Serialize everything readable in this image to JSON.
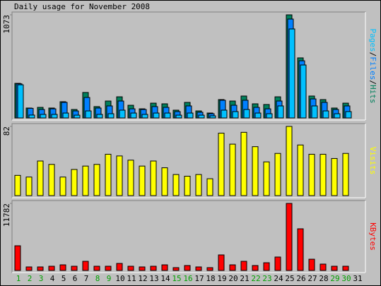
{
  "chart_data": [
    {
      "type": "bar",
      "title": "Daily usage for November 2008",
      "series": [
        {
          "name": "Pages",
          "color": "#00c0ff",
          "values": [
            345,
            30,
            37,
            37,
            51,
            29,
            73,
            37,
            44,
            81,
            51,
            37,
            51,
            51,
            29,
            51,
            29,
            22,
            81,
            66,
            88,
            51,
            44,
            125,
            926,
            551,
            125,
            73,
            44,
            66,
            0
          ]
        },
        {
          "name": "Files",
          "color": "#0080ff",
          "values": [
            355,
            100,
            88,
            95,
            162,
            73,
            213,
            103,
            125,
            176,
            95,
            88,
            118,
            110,
            66,
            125,
            59,
            44,
            184,
            132,
            184,
            110,
            95,
            176,
            1029,
            595,
            198,
            162,
            88,
            125,
            0
          ]
        },
        {
          "name": "Hits",
          "color": "#00805c",
          "values": [
            360,
            103,
            110,
            103,
            169,
            88,
            265,
            118,
            176,
            220,
            132,
            95,
            154,
            147,
            81,
            162,
            73,
            51,
            191,
            176,
            228,
            147,
            140,
            220,
            1073,
            625,
            228,
            191,
            103,
            154,
            0
          ]
        }
      ],
      "legend_separator": "/",
      "ylim": [
        0,
        1073
      ],
      "yticks": [
        1073
      ]
    },
    {
      "type": "bar",
      "series": [
        {
          "name": "Visits",
          "color": "#ffff00",
          "values": [
            24,
            22,
            41,
            37,
            22,
            31,
            35,
            37,
            49,
            47,
            42,
            35,
            41,
            33,
            25,
            23,
            25,
            20,
            74,
            61,
            75,
            58,
            40,
            50,
            82,
            60,
            49,
            49,
            44,
            50,
            0
          ]
        }
      ],
      "ylim": [
        0,
        82
      ],
      "yticks": [
        82
      ]
    },
    {
      "type": "bar",
      "series": [
        {
          "name": "KBytes",
          "color": "#ff0000",
          "values": [
            4340,
            620,
            620,
            744,
            990,
            744,
            1610,
            744,
            744,
            1240,
            744,
            620,
            744,
            990,
            500,
            870,
            620,
            500,
            2730,
            990,
            1610,
            870,
            1360,
            2360,
            11782,
            7320,
            1980,
            1120,
            744,
            744,
            0
          ]
        }
      ],
      "ylim": [
        0,
        11782
      ],
      "yticks": [
        11782
      ],
      "categories": [
        "1",
        "2",
        "3",
        "4",
        "5",
        "6",
        "7",
        "8",
        "9",
        "10",
        "11",
        "12",
        "13",
        "14",
        "15",
        "16",
        "17",
        "18",
        "19",
        "20",
        "21",
        "22",
        "23",
        "24",
        "25",
        "26",
        "27",
        "28",
        "29",
        "30",
        "31"
      ],
      "category_colors": [
        "#00a000",
        "#00a000",
        "#00a000",
        "#000000",
        "#000000",
        "#000000",
        "#000000",
        "#00a000",
        "#00a000",
        "#000000",
        "#000000",
        "#000000",
        "#000000",
        "#000000",
        "#00a000",
        "#00a000",
        "#000000",
        "#000000",
        "#000000",
        "#000000",
        "#000000",
        "#00a000",
        "#00a000",
        "#000000",
        "#000000",
        "#000000",
        "#000000",
        "#000000",
        "#00a000",
        "#00a000",
        "#000000"
      ]
    }
  ]
}
